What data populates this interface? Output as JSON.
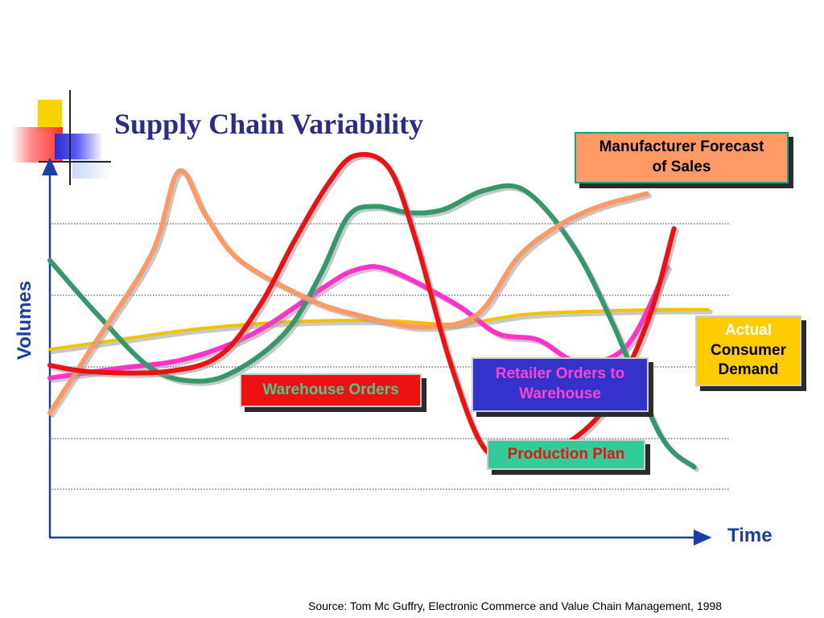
{
  "title": "Supply Chain Variability",
  "source": "Source: Tom Mc Guffry, Electronic Commerce and Value Chain Management, 1998",
  "chart_data": {
    "type": "line",
    "title": "Supply Chain Variability",
    "xlabel": "Time",
    "ylabel": "Volumes",
    "x_ticks_labeled": false,
    "y_ticks_labeled": false,
    "grid": "horizontal dotted",
    "xlim": [
      0,
      1
    ],
    "ylim": [
      0,
      1
    ],
    "series": [
      {
        "name": "Actual Consumer Demand",
        "color": "#f2c200",
        "points": [
          [
            0,
            0.44
          ],
          [
            0.1,
            0.47
          ],
          [
            0.2,
            0.5
          ],
          [
            0.3,
            0.52
          ],
          [
            0.4,
            0.53
          ],
          [
            0.5,
            0.53
          ],
          [
            0.6,
            0.52
          ],
          [
            0.7,
            0.55
          ],
          [
            0.8,
            0.56
          ],
          [
            0.9,
            0.565
          ],
          [
            0.97,
            0.565
          ]
        ]
      },
      {
        "name": "Retailer Orders to Warehouse",
        "color": "#ff33cc",
        "points": [
          [
            0,
            0.35
          ],
          [
            0.1,
            0.38
          ],
          [
            0.2,
            0.41
          ],
          [
            0.3,
            0.49
          ],
          [
            0.4,
            0.63
          ],
          [
            0.45,
            0.69
          ],
          [
            0.5,
            0.69
          ],
          [
            0.6,
            0.58
          ],
          [
            0.66,
            0.49
          ],
          [
            0.72,
            0.47
          ],
          [
            0.78,
            0.4
          ],
          [
            0.85,
            0.45
          ],
          [
            0.91,
            0.7
          ]
        ]
      },
      {
        "name": "Warehouse Orders",
        "color": "#33996b",
        "points": [
          [
            0,
            0.72
          ],
          [
            0.07,
            0.55
          ],
          [
            0.15,
            0.38
          ],
          [
            0.22,
            0.34
          ],
          [
            0.28,
            0.38
          ],
          [
            0.35,
            0.5
          ],
          [
            0.4,
            0.68
          ],
          [
            0.44,
            0.86
          ],
          [
            0.48,
            0.89
          ],
          [
            0.53,
            0.87
          ],
          [
            0.58,
            0.88
          ],
          [
            0.64,
            0.94
          ],
          [
            0.7,
            0.94
          ],
          [
            0.77,
            0.77
          ],
          [
            0.83,
            0.52
          ],
          [
            0.9,
            0.17
          ],
          [
            0.95,
            0.07
          ]
        ]
      },
      {
        "name": "Manufacturer Forecast of Sales",
        "color": "#ff9966",
        "points": [
          [
            0,
            0.24
          ],
          [
            0.06,
            0.44
          ],
          [
            0.15,
            0.74
          ],
          [
            0.19,
            1.0
          ],
          [
            0.23,
            0.86
          ],
          [
            0.28,
            0.72
          ],
          [
            0.38,
            0.6
          ],
          [
            0.45,
            0.55
          ],
          [
            0.55,
            0.51
          ],
          [
            0.63,
            0.55
          ],
          [
            0.69,
            0.73
          ],
          [
            0.75,
            0.83
          ],
          [
            0.81,
            0.89
          ],
          [
            0.88,
            0.93
          ]
        ]
      },
      {
        "name": "Production Plan",
        "color": "#ee1111",
        "points": [
          [
            0,
            0.39
          ],
          [
            0.06,
            0.37
          ],
          [
            0.17,
            0.37
          ],
          [
            0.25,
            0.42
          ],
          [
            0.31,
            0.58
          ],
          [
            0.36,
            0.78
          ],
          [
            0.41,
            0.96
          ],
          [
            0.45,
            1.05
          ],
          [
            0.5,
            1.01
          ],
          [
            0.54,
            0.78
          ],
          [
            0.59,
            0.4
          ],
          [
            0.64,
            0.13
          ],
          [
            0.69,
            0.11
          ],
          [
            0.75,
            0.13
          ],
          [
            0.82,
            0.26
          ],
          [
            0.88,
            0.52
          ],
          [
            0.92,
            0.82
          ]
        ]
      }
    ]
  },
  "labels": {
    "forecast": "Manufacturer Forecast of Sales",
    "consumer_l1": "Actual",
    "consumer_l2": "Consumer",
    "consumer_l3": "Demand",
    "retailer": "Retailer Orders to Warehouse",
    "warehouse": "Warehouse Orders",
    "production": "Production Plan"
  },
  "colors": {
    "title": "#2b2b8a",
    "axis": "#1a3fa8",
    "grid": "#6f6fd0"
  }
}
